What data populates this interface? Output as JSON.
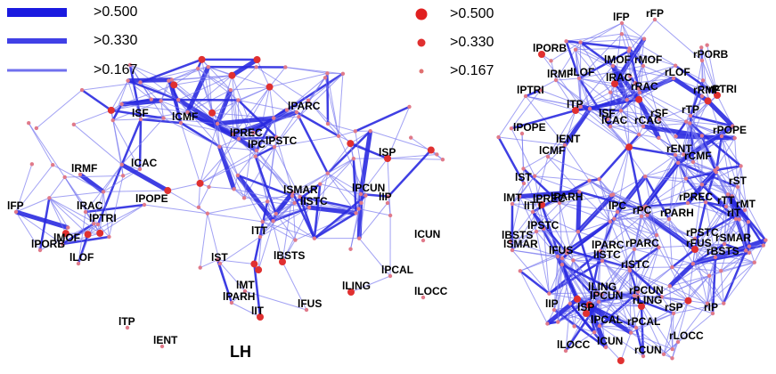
{
  "legend": {
    "edges": [
      ">0.500",
      ">0.330",
      ">0.167"
    ],
    "nodes": [
      ">0.500",
      ">0.330",
      ">0.167"
    ]
  },
  "lateral_view": {
    "hemisphere": "LH",
    "regions": [
      "lFP",
      "lPORB",
      "lMOF",
      "lLOF",
      "lRAC",
      "lPTRI",
      "lRMF",
      "lCAC",
      "lPOPE",
      "lSF",
      "lCMF",
      "lPREC",
      "lPC",
      "lPSTC",
      "lPARC",
      "lSP",
      "lSMAR",
      "lISTC",
      "lPCUN",
      "lIP",
      "lTT",
      "lST",
      "lBSTS",
      "lCUN",
      "lPCAL",
      "lLING",
      "lLOCC",
      "lMT",
      "lPARH",
      "lIT",
      "lFUS",
      "lTP",
      "lENT"
    ]
  },
  "axial_view": {
    "regions": [
      "lFP",
      "rFP",
      "lPORB",
      "lMOF",
      "rMOF",
      "rPORB",
      "lRMF",
      "lLOF",
      "lRAC",
      "rLOF",
      "rRAC",
      "rRMF",
      "lPTRI",
      "rPTRI",
      "lTP",
      "lSF",
      "rSF",
      "rTP",
      "lCAC",
      "rCAC",
      "lPOPE",
      "rPOPE",
      "lENT",
      "rENT",
      "lCMF",
      "rCMF",
      "lST",
      "rST",
      "lPARH",
      "rPREC",
      "rTT",
      "rMT",
      "lMT",
      "lPREC",
      "lITT",
      "lPC",
      "rPC",
      "rPARH",
      "rIT",
      "lPSTC",
      "rPSTC",
      "rSMAR",
      "lBSTS",
      "lSMAR",
      "lFUS",
      "lPARC",
      "rPARC",
      "rFUS",
      "lISTC",
      "rBSTS",
      "rISTC",
      "lLING",
      "rPCUN",
      "lPCUN",
      "rLING",
      "lIP",
      "lSP",
      "rSP",
      "rIP",
      "lPCAL",
      "rPCAL",
      "rLOCC",
      "lCUN",
      "lLOCC",
      "rCUN"
    ]
  }
}
